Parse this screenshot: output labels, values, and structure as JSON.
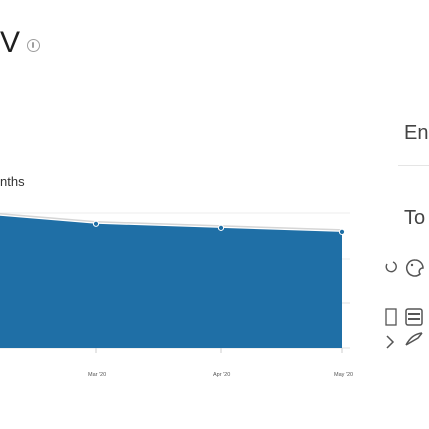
{
  "header": {
    "title": "V"
  },
  "subtitle": "nths",
  "sidebar": {
    "label_1": "En",
    "label_2": "To"
  },
  "chart_data": {
    "type": "area",
    "x": [
      "Mar '20",
      "Apr '20",
      "May '20"
    ],
    "series": [
      {
        "values": [
          92,
          89,
          86
        ],
        "color": "#1f6fa6"
      }
    ],
    "ylim": [
      0,
      100
    ],
    "grid": true,
    "tick_labels": [
      "Mar '20",
      "Apr '20",
      "May '20"
    ]
  },
  "icons": [
    "info-icon",
    "palette-icon",
    "chart-type-icon",
    "table-icon",
    "expand-icon",
    "share-icon",
    "rotate-icon"
  ]
}
